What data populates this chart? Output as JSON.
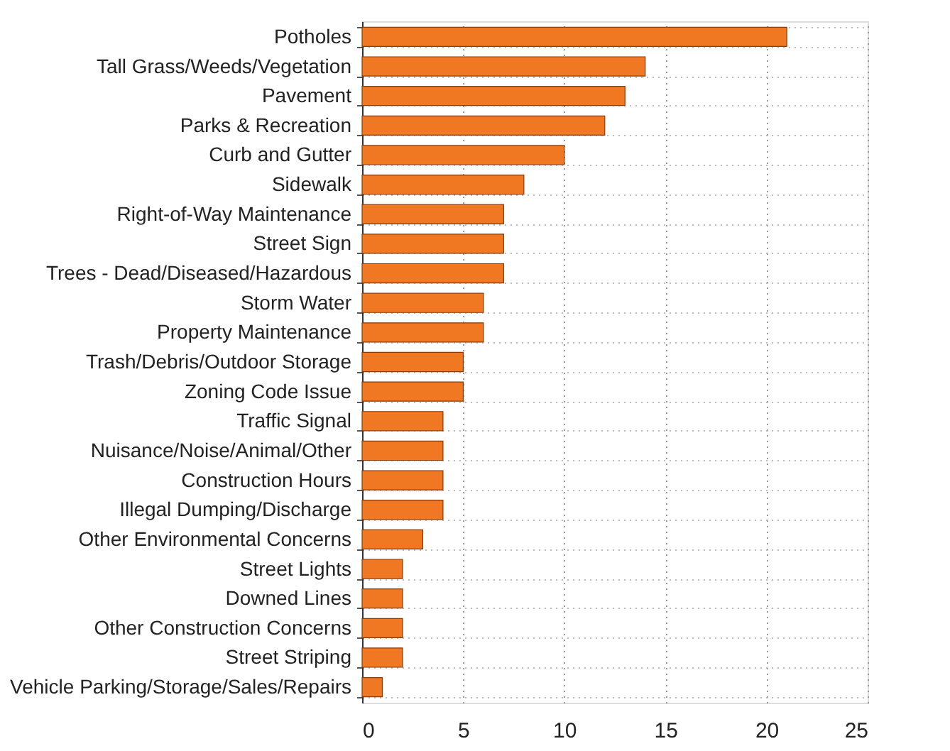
{
  "chart_data": {
    "type": "bar",
    "orientation": "horizontal",
    "categories": [
      "Potholes",
      "Tall Grass/Weeds/Vegetation",
      "Pavement",
      "Parks & Recreation",
      "Curb and Gutter",
      "Sidewalk",
      "Right-of-Way Maintenance",
      "Street Sign",
      "Trees - Dead/Diseased/Hazardous",
      "Storm Water",
      "Property Maintenance",
      "Trash/Debris/Outdoor Storage",
      "Zoning Code Issue",
      "Traffic Signal",
      "Nuisance/Noise/Animal/Other",
      "Construction Hours",
      "Illegal Dumping/Discharge",
      "Other Environmental Concerns",
      "Street Lights",
      "Downed Lines",
      "Other Construction Concerns",
      "Street Striping",
      "Vehicle Parking/Storage/Sales/Repairs"
    ],
    "values": [
      21,
      14,
      13,
      12,
      10,
      8,
      7,
      7,
      7,
      6,
      6,
      5,
      5,
      4,
      4,
      4,
      4,
      3,
      2,
      2,
      2,
      2,
      1
    ],
    "color": "#f07822",
    "xlim": [
      0,
      25
    ],
    "xticks": [
      0,
      5,
      10,
      15,
      20,
      25
    ],
    "grid": true
  }
}
